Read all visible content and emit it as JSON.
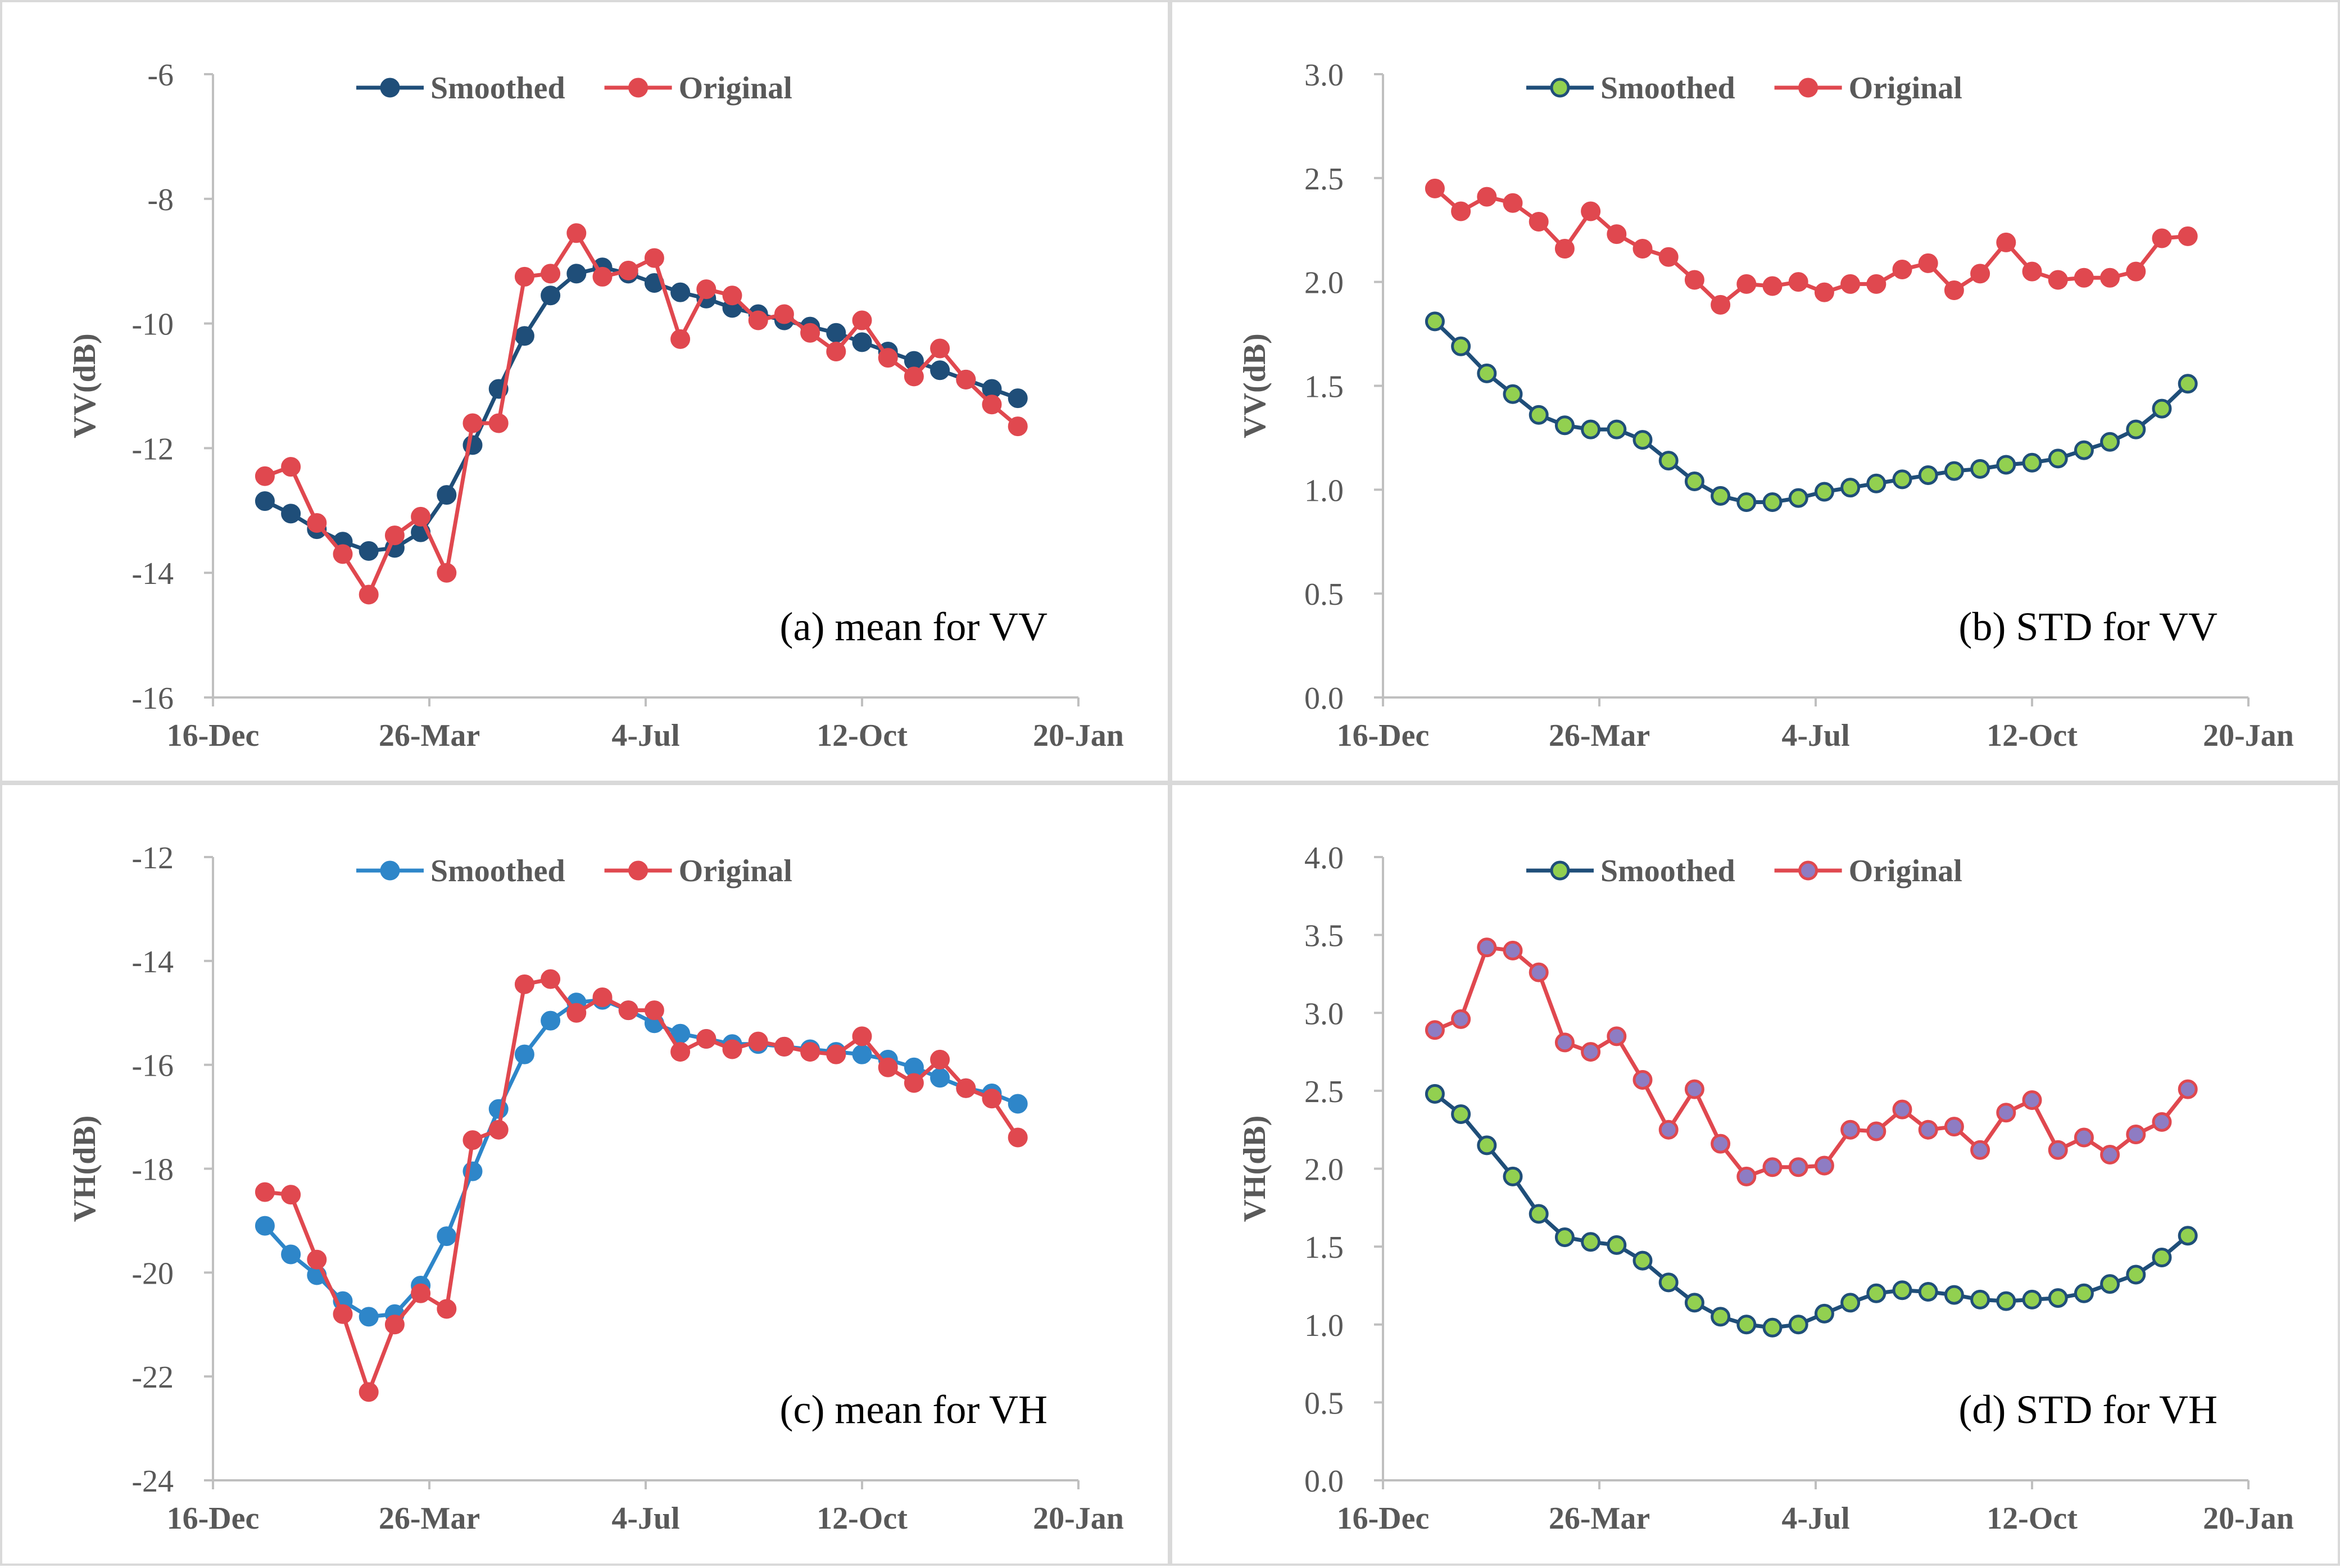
{
  "chart_data": [
    {
      "panel": "a",
      "type": "line",
      "annotation": "(a) mean for VV",
      "ylabel": "VV(dB)",
      "xlabel": "",
      "xlim": [
        0,
        400
      ],
      "xticks": [
        0,
        100,
        200,
        300,
        400
      ],
      "xtick_labels": [
        "16-Dec",
        "26-Mar",
        "4-Jul",
        "12-Oct",
        "20-Jan"
      ],
      "ylim": [
        -16,
        -6
      ],
      "yticks": [
        -16,
        -14,
        -12,
        -10,
        -8,
        -6
      ],
      "ytick_labels": [
        "-16",
        "-14",
        "-12",
        "-10",
        "-8",
        "-6"
      ],
      "legend_position": "top-center",
      "series": [
        {
          "name": "Smoothed",
          "color": "#1f4e79",
          "marker_fill": "#1f4e79",
          "x": [
            24,
            36,
            48,
            60,
            72,
            84,
            96,
            108,
            120,
            132,
            144,
            156,
            168,
            180,
            192,
            204,
            216,
            228,
            240,
            252,
            264,
            276,
            288,
            300,
            312,
            324,
            336,
            348,
            360,
            372
          ],
          "values": [
            -12.85,
            -13.05,
            -13.3,
            -13.5,
            -13.65,
            -13.6,
            -13.35,
            -12.75,
            -11.95,
            -11.05,
            -10.2,
            -9.55,
            -9.2,
            -9.1,
            -9.2,
            -9.35,
            -9.5,
            -9.6,
            -9.75,
            -9.85,
            -9.95,
            -10.05,
            -10.15,
            -10.3,
            -10.45,
            -10.6,
            -10.75,
            -10.9,
            -11.05,
            -11.2
          ]
        },
        {
          "name": "Original",
          "color": "#e0484f",
          "marker_fill": "#e0484f",
          "x": [
            24,
            36,
            48,
            60,
            72,
            84,
            96,
            108,
            120,
            132,
            144,
            156,
            168,
            180,
            192,
            204,
            216,
            228,
            240,
            252,
            264,
            276,
            288,
            300,
            312,
            324,
            336,
            348,
            360,
            372
          ],
          "values": [
            -12.45,
            -12.3,
            -13.2,
            -13.7,
            -14.35,
            -13.4,
            -13.1,
            -14.0,
            -11.6,
            -11.6,
            -9.25,
            -9.2,
            -8.55,
            -9.25,
            -9.15,
            -8.95,
            -10.25,
            -9.45,
            -9.55,
            -9.95,
            -9.85,
            -10.15,
            -10.45,
            -9.95,
            -10.55,
            -10.85,
            -10.4,
            -10.9,
            -11.3,
            -11.65
          ]
        }
      ]
    },
    {
      "panel": "b",
      "type": "line",
      "annotation": "(b) STD for VV",
      "ylabel": "VV(dB)",
      "xlabel": "",
      "xlim": [
        0,
        400
      ],
      "xticks": [
        0,
        100,
        200,
        300,
        400
      ],
      "xtick_labels": [
        "16-Dec",
        "26-Mar",
        "4-Jul",
        "12-Oct",
        "20-Jan"
      ],
      "ylim": [
        0,
        3
      ],
      "yticks": [
        0,
        0.5,
        1,
        1.5,
        2,
        2.5,
        3
      ],
      "ytick_labels": [
        "0.0",
        "0.5",
        "1.0",
        "1.5",
        "2.0",
        "2.5",
        "3.0"
      ],
      "legend_position": "top-center",
      "series": [
        {
          "name": "Smoothed",
          "color": "#1f4e79",
          "marker_fill": "#92d050",
          "x": [
            24,
            36,
            48,
            60,
            72,
            84,
            96,
            108,
            120,
            132,
            144,
            156,
            168,
            180,
            192,
            204,
            216,
            228,
            240,
            252,
            264,
            276,
            288,
            300,
            312,
            324,
            336,
            348,
            360,
            372
          ],
          "values": [
            1.81,
            1.69,
            1.56,
            1.46,
            1.36,
            1.31,
            1.29,
            1.29,
            1.24,
            1.14,
            1.04,
            0.97,
            0.94,
            0.94,
            0.96,
            0.99,
            1.01,
            1.03,
            1.05,
            1.07,
            1.09,
            1.1,
            1.12,
            1.13,
            1.15,
            1.19,
            1.23,
            1.29,
            1.39,
            1.51
          ]
        },
        {
          "name": "Original",
          "color": "#e0484f",
          "marker_fill": "#e0484f",
          "x": [
            24,
            36,
            48,
            60,
            72,
            84,
            96,
            108,
            120,
            132,
            144,
            156,
            168,
            180,
            192,
            204,
            216,
            228,
            240,
            252,
            264,
            276,
            288,
            300,
            312,
            324,
            336,
            348,
            360,
            372
          ],
          "values": [
            2.45,
            2.34,
            2.41,
            2.38,
            2.29,
            2.16,
            2.34,
            2.23,
            2.16,
            2.12,
            2.01,
            1.89,
            1.99,
            1.98,
            2.0,
            1.95,
            1.99,
            1.99,
            2.06,
            2.09,
            1.96,
            2.04,
            2.19,
            2.05,
            2.01,
            2.02,
            2.02,
            2.05,
            2.21,
            2.22
          ]
        }
      ]
    },
    {
      "panel": "c",
      "type": "line",
      "annotation": "(c) mean for VH",
      "ylabel": "VH(dB)",
      "xlabel": "",
      "xlim": [
        0,
        400
      ],
      "xticks": [
        0,
        100,
        200,
        300,
        400
      ],
      "xtick_labels": [
        "16-Dec",
        "26-Mar",
        "4-Jul",
        "12-Oct",
        "20-Jan"
      ],
      "ylim": [
        -24,
        -12
      ],
      "yticks": [
        -24,
        -22,
        -20,
        -18,
        -16,
        -14,
        -12
      ],
      "ytick_labels": [
        "-24",
        "-22",
        "-20",
        "-18",
        "-16",
        "-14",
        "-12"
      ],
      "legend_position": "top-center",
      "series": [
        {
          "name": "Smoothed",
          "color": "#2e86c9",
          "marker_fill": "#2e86c9",
          "x": [
            24,
            36,
            48,
            60,
            72,
            84,
            96,
            108,
            120,
            132,
            144,
            156,
            168,
            180,
            192,
            204,
            216,
            228,
            240,
            252,
            264,
            276,
            288,
            300,
            312,
            324,
            336,
            348,
            360,
            372
          ],
          "values": [
            -19.1,
            -19.65,
            -20.05,
            -20.55,
            -20.85,
            -20.8,
            -20.25,
            -19.3,
            -18.05,
            -16.85,
            -15.8,
            -15.15,
            -14.8,
            -14.75,
            -14.95,
            -15.2,
            -15.4,
            -15.5,
            -15.6,
            -15.6,
            -15.65,
            -15.7,
            -15.75,
            -15.8,
            -15.9,
            -16.05,
            -16.25,
            -16.45,
            -16.55,
            -16.75
          ]
        },
        {
          "name": "Original",
          "color": "#e0484f",
          "marker_fill": "#e0484f",
          "x": [
            24,
            36,
            48,
            60,
            72,
            84,
            96,
            108,
            120,
            132,
            144,
            156,
            168,
            180,
            192,
            204,
            216,
            228,
            240,
            252,
            264,
            276,
            288,
            300,
            312,
            324,
            336,
            348,
            360,
            372
          ],
          "values": [
            -18.45,
            -18.5,
            -19.75,
            -20.8,
            -22.3,
            -21.0,
            -20.4,
            -20.7,
            -17.45,
            -17.25,
            -14.45,
            -14.35,
            -15.0,
            -14.7,
            -14.95,
            -14.95,
            -15.75,
            -15.5,
            -15.7,
            -15.55,
            -15.65,
            -15.75,
            -15.8,
            -15.45,
            -16.05,
            -16.35,
            -15.9,
            -16.45,
            -16.65,
            -17.4
          ]
        }
      ]
    },
    {
      "panel": "d",
      "type": "line",
      "annotation": "(d) STD for VH",
      "ylabel": "VH(dB)",
      "xlabel": "",
      "xlim": [
        0,
        400
      ],
      "xticks": [
        0,
        100,
        200,
        300,
        400
      ],
      "xtick_labels": [
        "16-Dec",
        "26-Mar",
        "4-Jul",
        "12-Oct",
        "20-Jan"
      ],
      "ylim": [
        0,
        4
      ],
      "yticks": [
        0,
        0.5,
        1,
        1.5,
        2,
        2.5,
        3,
        3.5,
        4
      ],
      "ytick_labels": [
        "0.0",
        "0.5",
        "1.0",
        "1.5",
        "2.0",
        "2.5",
        "3.0",
        "3.5",
        "4.0"
      ],
      "legend_position": "top-center",
      "series": [
        {
          "name": "Smoothed",
          "color": "#1f4e79",
          "marker_fill": "#92d050",
          "x": [
            24,
            36,
            48,
            60,
            72,
            84,
            96,
            108,
            120,
            132,
            144,
            156,
            168,
            180,
            192,
            204,
            216,
            228,
            240,
            252,
            264,
            276,
            288,
            300,
            312,
            324,
            336,
            348,
            360,
            372
          ],
          "values": [
            2.48,
            2.35,
            2.15,
            1.95,
            1.71,
            1.56,
            1.53,
            1.51,
            1.41,
            1.27,
            1.14,
            1.05,
            1.0,
            0.98,
            1.0,
            1.07,
            1.14,
            1.2,
            1.22,
            1.21,
            1.19,
            1.16,
            1.15,
            1.16,
            1.17,
            1.2,
            1.26,
            1.32,
            1.43,
            1.57
          ]
        },
        {
          "name": "Original",
          "color": "#e0484f",
          "marker_fill": "#8e7cc3",
          "x": [
            24,
            36,
            48,
            60,
            72,
            84,
            96,
            108,
            120,
            132,
            144,
            156,
            168,
            180,
            192,
            204,
            216,
            228,
            240,
            252,
            264,
            276,
            288,
            300,
            312,
            324,
            336,
            348,
            360,
            372
          ],
          "values": [
            2.89,
            2.96,
            3.42,
            3.4,
            3.26,
            2.81,
            2.75,
            2.85,
            2.57,
            2.25,
            2.51,
            2.16,
            1.95,
            2.01,
            2.01,
            2.02,
            2.25,
            2.24,
            2.38,
            2.25,
            2.27,
            2.12,
            2.36,
            2.44,
            2.12,
            2.2,
            2.09,
            2.22,
            2.3,
            2.51
          ]
        }
      ]
    }
  ]
}
